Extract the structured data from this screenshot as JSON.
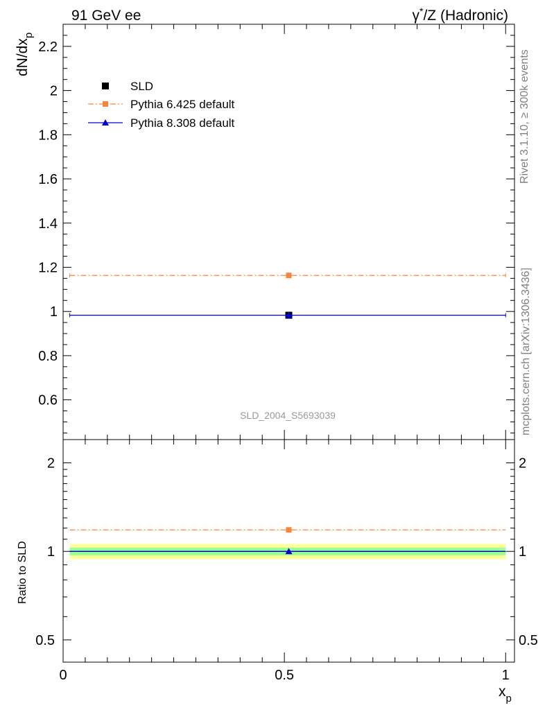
{
  "header": {
    "left": "91 GeV ee",
    "right_pre": "γ",
    "right_sup": "*",
    "right_post": "/Z (Hadronic)"
  },
  "side_labels": {
    "top": "Rivet 3.1.10, ≥ 300k events",
    "bottom": "mcplots.cern.ch [arXiv:1306.3436]"
  },
  "watermark": "SLD_2004_S5693039",
  "axes": {
    "ylabel_main_base": "dN/dx",
    "ylabel_main_sub": "p",
    "ylabel_ratio": "Ratio to SLD",
    "xlabel_base": "x",
    "xlabel_sub": "p"
  },
  "legend": [
    {
      "label": "SLD",
      "marker": "square",
      "color": "#000000"
    },
    {
      "label": "Pythia 6.425 default",
      "marker": "square",
      "color": "#f5843c",
      "dash": "dashdot"
    },
    {
      "label": "Pythia 8.308 default",
      "marker": "triangle",
      "color": "#0000cc"
    }
  ],
  "chart_data": [
    {
      "type": "scatter",
      "panel": "main",
      "xlim": [
        0,
        1.02
      ],
      "ylim": [
        0.42,
        2.3
      ],
      "yticks": [
        0.6,
        0.8,
        1,
        1.2,
        1.4,
        1.6,
        1.8,
        2,
        2.2
      ],
      "ytick_labels": [
        "0.6",
        "0.8",
        "1",
        "1.2",
        "1.4",
        "1.6",
        "1.8",
        "2",
        "2.2"
      ],
      "series": [
        {
          "name": "SLD",
          "x": [
            0.51
          ],
          "y": [
            0.983
          ],
          "color": "#000000"
        },
        {
          "name": "Pythia 6.425 default",
          "x": [
            0.51
          ],
          "y": [
            1.163
          ],
          "xrange": [
            0.015,
            1.0
          ],
          "color": "#f5843c"
        },
        {
          "name": "Pythia 8.308 default",
          "x": [
            0.51
          ],
          "y": [
            0.983
          ],
          "xrange": [
            0.015,
            1.0
          ],
          "color": "#0000cc"
        }
      ]
    },
    {
      "type": "scatter",
      "panel": "ratio",
      "xlim": [
        0,
        1.02
      ],
      "ylim": [
        0.42,
        2.4
      ],
      "log_scale_y": true,
      "yticks": [
        0.5,
        1,
        2
      ],
      "ytick_labels": [
        "0.5",
        "1",
        "2"
      ],
      "xticks": [
        0,
        0.5,
        1
      ],
      "xtick_labels": [
        "0",
        "0.5",
        "1"
      ],
      "bands": [
        {
          "ylow": 0.94,
          "yhigh": 1.06,
          "color": "#ffff99"
        },
        {
          "ylow": 0.97,
          "yhigh": 1.03,
          "color": "#99ff99"
        }
      ],
      "series": [
        {
          "name": "Pythia 6.425 default",
          "x": [
            0.51
          ],
          "y": [
            1.183
          ],
          "xrange": [
            0.015,
            1.0
          ],
          "color": "#f5843c"
        },
        {
          "name": "Pythia 8.308 default",
          "x": [
            0.51
          ],
          "y": [
            1.0
          ],
          "xrange": [
            0.015,
            1.0
          ],
          "color": "#0000cc"
        }
      ]
    }
  ]
}
